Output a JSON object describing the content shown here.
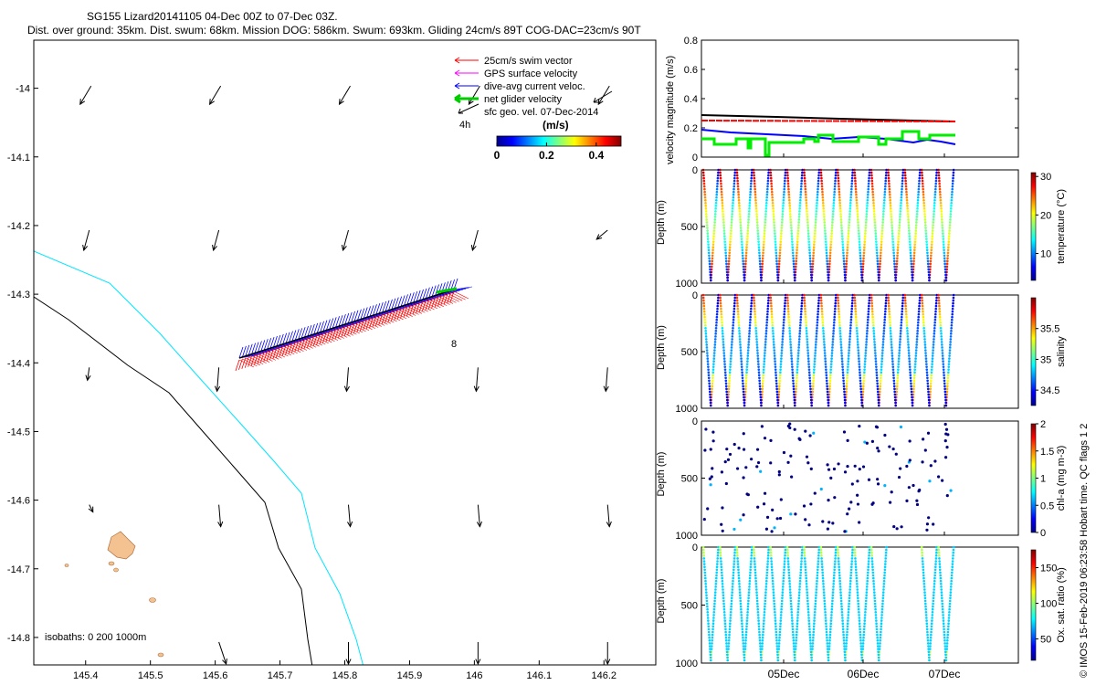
{
  "header": {
    "title": "SG155 Lizard20141105 04-Dec 00Z to 07-Dec 03Z.",
    "subtitle": "Dist. over ground: 35km. Dist. swum: 68km. Mission DOG: 586km. Swum: 693km. Gliding 24cm/s 89T COG-DAC=23cm/s 90T"
  },
  "map": {
    "legend": [
      {
        "label": "25cm/s swim vector",
        "color": "#ff0000"
      },
      {
        "label": "GPS surface velocity",
        "color": "#ff00ff"
      },
      {
        "label": "dive-avg current veloc.",
        "color": "#0000ff"
      },
      {
        "label": "net glider velocity",
        "color": "#00cc00"
      },
      {
        "label": "sfc geo. vel. 07-Dec-2014",
        "color": "#000000"
      }
    ],
    "legend_time_label": "4h",
    "colorbar": {
      "label": "(m/s)",
      "ticks": [
        "0",
        "0.2",
        "0.4"
      ],
      "range": [
        0,
        0.5
      ]
    },
    "isobath_text": "isobaths: 0   200  1000m",
    "marker_label": "8",
    "x_ticks": [
      "145.4",
      "145.5",
      "145.6",
      "145.7",
      "145.8",
      "145.9",
      "146",
      "146.1",
      "146.2"
    ],
    "y_ticks": [
      "-14",
      "-14.1",
      "-14.2",
      "-14.3",
      "-14.4",
      "-14.5",
      "-14.6",
      "-14.7",
      "-14.8"
    ],
    "x_range": [
      145.32,
      146.28
    ],
    "y_range": [
      -14.84,
      -13.93
    ],
    "colors": {
      "coast_200m": "#00e5ff",
      "coast_1000m": "#000000",
      "island": "#f4c290",
      "dac": "#0000ff",
      "swim": "#ff0000",
      "net": "#00cc00"
    },
    "track": {
      "start": [
        145.62,
        -14.39
      ],
      "end": [
        145.95,
        -14.29
      ]
    }
  },
  "velocity_panel": {
    "ylabel": "velocity magnitude (m/s)",
    "y_ticks": [
      "0",
      "0.2",
      "0.4",
      "0.6",
      "0.8"
    ],
    "y_range": [
      0,
      0.8
    ]
  },
  "profiles": [
    {
      "ylabel": "Depth (m)",
      "cbar_label": "temperature (°C)",
      "cbar_ticks": [
        "10",
        "20",
        "30"
      ],
      "depth_ticks": [
        "0",
        "500",
        "1000"
      ],
      "style": "temperature"
    },
    {
      "ylabel": "Depth (m)",
      "cbar_label": "salinity",
      "cbar_ticks": [
        "34.5",
        "35",
        "35.5"
      ],
      "depth_ticks": [
        "0",
        "500",
        "1000"
      ],
      "style": "salinity"
    },
    {
      "ylabel": "Depth (m)",
      "cbar_label": "chl-a (mg m-3)",
      "cbar_ticks": [
        "0",
        "0.5",
        "1",
        "1.5",
        "2"
      ],
      "depth_ticks": [
        "0",
        "500",
        "1000"
      ],
      "style": "chl"
    },
    {
      "ylabel": "Depth (m)",
      "cbar_label": "Ox. sat. ratio (%)",
      "cbar_ticks": [
        "50",
        "100",
        "150"
      ],
      "depth_ticks": [
        "0",
        "500",
        "1000"
      ],
      "style": "oxy"
    }
  ],
  "time_ticks": [
    "05Dec",
    "06Dec",
    "07Dec"
  ],
  "side_note": "© IMOS 15-Feb-2019 06:23:58 Hobart time. QC flags 1  2"
}
